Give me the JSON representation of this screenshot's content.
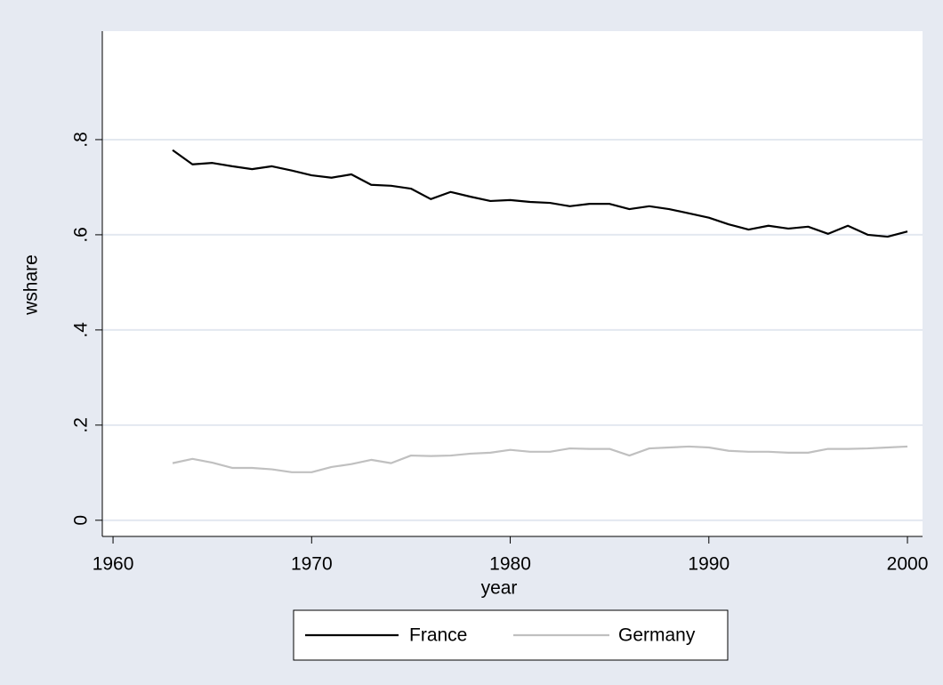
{
  "chart_data": {
    "type": "line",
    "x_label": "year",
    "y_label": "wshare",
    "x": [
      1963,
      1964,
      1965,
      1966,
      1967,
      1968,
      1969,
      1970,
      1971,
      1972,
      1973,
      1974,
      1975,
      1976,
      1977,
      1978,
      1979,
      1980,
      1981,
      1982,
      1983,
      1984,
      1985,
      1986,
      1987,
      1988,
      1989,
      1990,
      1991,
      1992,
      1993,
      1994,
      1995,
      1996,
      1997,
      1998,
      1999,
      2000
    ],
    "series": [
      {
        "name": "France",
        "color": "#000000",
        "values": [
          0.778,
          0.748,
          0.751,
          0.744,
          0.738,
          0.744,
          0.735,
          0.725,
          0.72,
          0.727,
          0.705,
          0.703,
          0.697,
          0.675,
          0.69,
          0.68,
          0.671,
          0.673,
          0.669,
          0.667,
          0.66,
          0.665,
          0.665,
          0.654,
          0.66,
          0.654,
          0.645,
          0.636,
          0.622,
          0.611,
          0.619,
          0.613,
          0.617,
          0.602,
          0.619,
          0.6,
          0.596,
          0.607
        ]
      },
      {
        "name": "Germany",
        "color": "#c0c0c0",
        "values": [
          0.12,
          0.129,
          0.121,
          0.11,
          0.11,
          0.107,
          0.101,
          0.101,
          0.112,
          0.118,
          0.127,
          0.12,
          0.136,
          0.135,
          0.136,
          0.14,
          0.142,
          0.148,
          0.144,
          0.144,
          0.151,
          0.15,
          0.15,
          0.136,
          0.151,
          0.153,
          0.155,
          0.153,
          0.146,
          0.144,
          0.144,
          0.142,
          0.142,
          0.15,
          0.15,
          0.151,
          0.153,
          0.155
        ]
      }
    ],
    "xlim": [
      1959.46,
      2000.76
    ],
    "xticks": [
      1960,
      1970,
      1980,
      1990,
      2000
    ],
    "ylim": [
      -0.034,
      1.028
    ],
    "yticks": [
      0,
      {
        "value": 0.2,
        "label": ".2"
      },
      {
        "value": 0.4,
        "label": ".4"
      },
      {
        "value": 0.6,
        "label": ".6"
      },
      {
        "value": 0.8,
        "label": ".8"
      }
    ],
    "grid": true,
    "legend": "bottom"
  }
}
